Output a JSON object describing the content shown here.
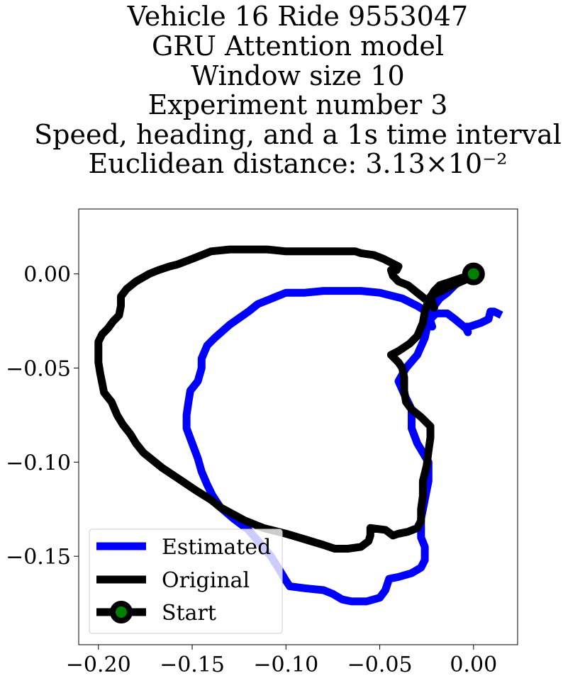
{
  "chart_data": {
    "type": "line",
    "title_lines": [
      "Vehicle 16 Ride 9553047",
      "GRU Attention model",
      "Window size 10",
      "Experiment number 3",
      "Speed, heading, and a 1s time interval",
      "Euclidean distance: 3.13×10⁻²"
    ],
    "xlabel": "",
    "ylabel": "",
    "xlim": [
      -0.2105,
      0.0235
    ],
    "ylim": [
      -0.197,
      0.0345
    ],
    "xticks": [
      -0.2,
      -0.15,
      -0.1,
      -0.05,
      0.0
    ],
    "xtick_labels": [
      "−0.20",
      "−0.15",
      "−0.10",
      "−0.05",
      "0.00"
    ],
    "yticks": [
      0.0,
      -0.05,
      -0.1,
      -0.15
    ],
    "ytick_labels": [
      "0.00",
      "−0.05",
      "−0.10",
      "−0.15"
    ],
    "grid": false,
    "legend_position": "lower-left",
    "series": [
      {
        "name": "Estimated",
        "color": "#0000ff",
        "points": [
          [
            0.0,
            0.0
          ],
          [
            -0.006,
            -0.003
          ],
          [
            -0.01,
            -0.006
          ],
          [
            -0.014,
            -0.01
          ],
          [
            -0.018,
            -0.013
          ],
          [
            -0.021,
            -0.017
          ],
          [
            -0.023,
            -0.021
          ],
          [
            -0.024,
            -0.026
          ],
          [
            -0.022,
            -0.028
          ],
          [
            -0.024,
            -0.022
          ],
          [
            -0.025,
            -0.02
          ],
          [
            -0.03,
            -0.017
          ],
          [
            -0.038,
            -0.013
          ],
          [
            -0.05,
            -0.01
          ],
          [
            -0.06,
            -0.009
          ],
          [
            -0.07,
            -0.009
          ],
          [
            -0.08,
            -0.009
          ],
          [
            -0.09,
            -0.01
          ],
          [
            -0.1,
            -0.01
          ],
          [
            -0.105,
            -0.012
          ],
          [
            -0.115,
            -0.016
          ],
          [
            -0.12,
            -0.02
          ],
          [
            -0.13,
            -0.027
          ],
          [
            -0.138,
            -0.034
          ],
          [
            -0.142,
            -0.038
          ],
          [
            -0.145,
            -0.045
          ],
          [
            -0.145,
            -0.05
          ],
          [
            -0.147,
            -0.057
          ],
          [
            -0.151,
            -0.062
          ],
          [
            -0.152,
            -0.068
          ],
          [
            -0.153,
            -0.075
          ],
          [
            -0.153,
            -0.082
          ],
          [
            -0.15,
            -0.09
          ],
          [
            -0.147,
            -0.098
          ],
          [
            -0.145,
            -0.105
          ],
          [
            -0.142,
            -0.112
          ],
          [
            -0.139,
            -0.118
          ],
          [
            -0.135,
            -0.124
          ],
          [
            -0.128,
            -0.13
          ],
          [
            -0.12,
            -0.136
          ],
          [
            -0.114,
            -0.143
          ],
          [
            -0.108,
            -0.15
          ],
          [
            -0.103,
            -0.158
          ],
          [
            -0.1,
            -0.163
          ],
          [
            -0.098,
            -0.166
          ],
          [
            -0.09,
            -0.167
          ],
          [
            -0.08,
            -0.168
          ],
          [
            -0.075,
            -0.17
          ],
          [
            -0.07,
            -0.173
          ],
          [
            -0.065,
            -0.174
          ],
          [
            -0.057,
            -0.174
          ],
          [
            -0.05,
            -0.172
          ],
          [
            -0.047,
            -0.168
          ],
          [
            -0.045,
            -0.162
          ],
          [
            -0.04,
            -0.161
          ],
          [
            -0.033,
            -0.159
          ],
          [
            -0.028,
            -0.156
          ],
          [
            -0.026,
            -0.152
          ],
          [
            -0.026,
            -0.145
          ],
          [
            -0.028,
            -0.14
          ],
          [
            -0.028,
            -0.13
          ],
          [
            -0.026,
            -0.12
          ],
          [
            -0.024,
            -0.11
          ],
          [
            -0.024,
            -0.1
          ],
          [
            -0.03,
            -0.09
          ],
          [
            -0.033,
            -0.082
          ],
          [
            -0.033,
            -0.072
          ],
          [
            -0.036,
            -0.066
          ],
          [
            -0.04,
            -0.057
          ],
          [
            -0.036,
            -0.05
          ],
          [
            -0.03,
            -0.043
          ],
          [
            -0.026,
            -0.034
          ],
          [
            -0.024,
            -0.025
          ],
          [
            -0.02,
            -0.021
          ],
          [
            -0.014,
            -0.021
          ],
          [
            -0.01,
            -0.024
          ],
          [
            -0.004,
            -0.029
          ],
          [
            -0.003,
            -0.031
          ],
          [
            -0.004,
            -0.028
          ],
          [
            -0.002,
            -0.028
          ],
          [
            0.004,
            -0.026
          ],
          [
            0.008,
            -0.024
          ],
          [
            0.009,
            -0.02
          ],
          [
            0.011,
            -0.02
          ],
          [
            0.013,
            -0.021
          ]
        ]
      },
      {
        "name": "Original",
        "color": "#000000",
        "points": [
          [
            0.0,
            0.0
          ],
          [
            -0.006,
            -0.002
          ],
          [
            -0.012,
            -0.004
          ],
          [
            -0.018,
            -0.006
          ],
          [
            -0.021,
            -0.009
          ],
          [
            -0.024,
            -0.014
          ],
          [
            -0.026,
            -0.02
          ],
          [
            -0.027,
            -0.026
          ],
          [
            -0.03,
            -0.033
          ],
          [
            -0.034,
            -0.037
          ],
          [
            -0.04,
            -0.041
          ],
          [
            -0.044,
            -0.043
          ],
          [
            -0.04,
            -0.047
          ],
          [
            -0.038,
            -0.05
          ],
          [
            -0.037,
            -0.055
          ],
          [
            -0.037,
            -0.062
          ],
          [
            -0.036,
            -0.068
          ],
          [
            -0.033,
            -0.072
          ],
          [
            -0.028,
            -0.076
          ],
          [
            -0.023,
            -0.081
          ],
          [
            -0.023,
            -0.087
          ],
          [
            -0.024,
            -0.094
          ],
          [
            -0.025,
            -0.102
          ],
          [
            -0.027,
            -0.11
          ],
          [
            -0.027,
            -0.118
          ],
          [
            -0.028,
            -0.125
          ],
          [
            -0.028,
            -0.131
          ],
          [
            -0.03,
            -0.135
          ],
          [
            -0.035,
            -0.137
          ],
          [
            -0.04,
            -0.138
          ],
          [
            -0.043,
            -0.139
          ],
          [
            -0.047,
            -0.136
          ],
          [
            -0.055,
            -0.135
          ],
          [
            -0.055,
            -0.139
          ],
          [
            -0.056,
            -0.142
          ],
          [
            -0.06,
            -0.145
          ],
          [
            -0.067,
            -0.146
          ],
          [
            -0.074,
            -0.146
          ],
          [
            -0.08,
            -0.144
          ],
          [
            -0.09,
            -0.141
          ],
          [
            -0.1,
            -0.138
          ],
          [
            -0.112,
            -0.135
          ],
          [
            -0.122,
            -0.131
          ],
          [
            -0.135,
            -0.124
          ],
          [
            -0.14,
            -0.12
          ],
          [
            -0.148,
            -0.115
          ],
          [
            -0.157,
            -0.109
          ],
          [
            -0.166,
            -0.103
          ],
          [
            -0.176,
            -0.095
          ],
          [
            -0.18,
            -0.09
          ],
          [
            -0.183,
            -0.085
          ],
          [
            -0.187,
            -0.08
          ],
          [
            -0.19,
            -0.075
          ],
          [
            -0.193,
            -0.068
          ],
          [
            -0.197,
            -0.063
          ],
          [
            -0.198,
            -0.058
          ],
          [
            -0.199,
            -0.053
          ],
          [
            -0.2,
            -0.047
          ],
          [
            -0.2,
            -0.04
          ],
          [
            -0.2,
            -0.036
          ],
          [
            -0.198,
            -0.032
          ],
          [
            -0.195,
            -0.029
          ],
          [
            -0.192,
            -0.025
          ],
          [
            -0.189,
            -0.022
          ],
          [
            -0.188,
            -0.017
          ],
          [
            -0.188,
            -0.012
          ],
          [
            -0.185,
            -0.008
          ],
          [
            -0.18,
            -0.004
          ],
          [
            -0.173,
            0.0
          ],
          [
            -0.168,
            0.002
          ],
          [
            -0.162,
            0.004
          ],
          [
            -0.158,
            0.005
          ],
          [
            -0.15,
            0.008
          ],
          [
            -0.145,
            0.01
          ],
          [
            -0.14,
            0.012
          ],
          [
            -0.13,
            0.013
          ],
          [
            -0.12,
            0.013
          ],
          [
            -0.11,
            0.013
          ],
          [
            -0.1,
            0.012
          ],
          [
            -0.09,
            0.012
          ],
          [
            -0.08,
            0.012
          ],
          [
            -0.07,
            0.012
          ],
          [
            -0.063,
            0.012
          ],
          [
            -0.06,
            0.011
          ],
          [
            -0.053,
            0.01
          ],
          [
            -0.048,
            0.008
          ],
          [
            -0.044,
            0.006
          ],
          [
            -0.04,
            0.004
          ],
          [
            -0.041,
            0.002
          ],
          [
            -0.044,
            0.002
          ],
          [
            -0.043,
            -0.001
          ],
          [
            -0.04,
            -0.004
          ],
          [
            -0.035,
            -0.006
          ],
          [
            -0.03,
            -0.01
          ],
          [
            -0.025,
            -0.014
          ],
          [
            -0.021,
            -0.018
          ],
          [
            -0.023,
            -0.012
          ],
          [
            -0.017,
            -0.009
          ],
          [
            -0.011,
            -0.006
          ],
          [
            -0.004,
            -0.003
          ],
          [
            0.0,
            0.0
          ]
        ]
      }
    ],
    "start_marker": {
      "name": "Start",
      "x": 0.0,
      "y": 0.0,
      "edge_color": "#000000",
      "face_color": "#008000"
    },
    "legend": [
      {
        "label": "Estimated",
        "color": "#0000ff",
        "marker": false
      },
      {
        "label": "Original",
        "color": "#000000",
        "marker": false
      },
      {
        "label": "Start",
        "color": "#000000",
        "marker": true,
        "marker_face": "#008000"
      }
    ]
  }
}
